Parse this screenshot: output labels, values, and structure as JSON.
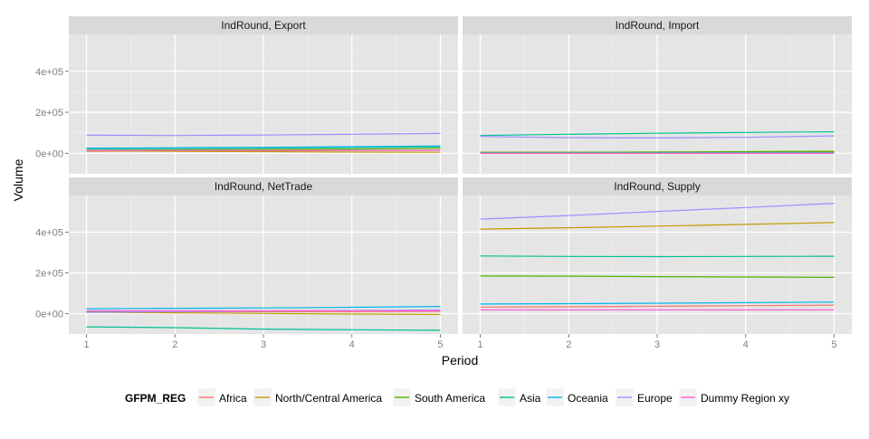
{
  "chart_data": {
    "type": "line",
    "xlabel": "Period",
    "ylabel": "Volume",
    "x": [
      1,
      2,
      3,
      4,
      5
    ],
    "xlim": [
      0.8,
      5.2
    ],
    "ylim": [
      -100000,
      580000
    ],
    "y_ticks": [
      0,
      200000,
      400000
    ],
    "y_tick_labels": [
      "0e+00",
      "2e+05",
      "4e+05"
    ],
    "x_ticks": [
      1,
      2,
      3,
      4,
      5
    ],
    "x_tick_labels": [
      "1",
      "2",
      "3",
      "4",
      "5"
    ],
    "grid": true,
    "facet_layout": "2x2",
    "legend": {
      "title": "GFPM_REG",
      "position": "bottom",
      "entries": [
        {
          "name": "Africa",
          "color": "#F8766D"
        },
        {
          "name": "North/Central America",
          "color": "#C49A00"
        },
        {
          "name": "South America",
          "color": "#53B400"
        },
        {
          "name": "Asia",
          "color": "#00C094"
        },
        {
          "name": "Oceania",
          "color": "#00B6EB"
        },
        {
          "name": "Europe",
          "color": "#A58AFF"
        },
        {
          "name": "Dummy Region xy",
          "color": "#FB61D7"
        }
      ]
    },
    "panels": [
      {
        "title": "IndRound, Export",
        "series": [
          {
            "name": "Africa",
            "values": [
              10000,
              12000,
              13000,
              14000,
              15000
            ]
          },
          {
            "name": "North/Central America",
            "values": [
              12000,
              10000,
              8000,
              6000,
              5000
            ]
          },
          {
            "name": "South America",
            "values": [
              15000,
              17000,
              19000,
              21000,
              24000
            ]
          },
          {
            "name": "Asia",
            "values": [
              22000,
              24000,
              26000,
              29000,
              32000
            ]
          },
          {
            "name": "Oceania",
            "values": [
              25000,
              27000,
              29000,
              32000,
              36000
            ]
          },
          {
            "name": "Europe",
            "values": [
              88000,
              87000,
              89000,
              93000,
              97000
            ]
          },
          {
            "name": "Dummy Region xy",
            "values": [
              14000,
              14000,
              14000,
              14000,
              14000
            ]
          }
        ]
      },
      {
        "title": "IndRound, Import",
        "series": [
          {
            "name": "Africa",
            "values": [
              3000,
              3500,
              4000,
              4500,
              5000
            ]
          },
          {
            "name": "North/Central America",
            "values": [
              5000,
              5000,
              6000,
              7000,
              8000
            ]
          },
          {
            "name": "South America",
            "values": [
              4000,
              5000,
              6000,
              8000,
              10000
            ]
          },
          {
            "name": "Asia",
            "values": [
              87000,
              93000,
              98000,
              102000,
              105000
            ]
          },
          {
            "name": "Oceania",
            "values": [
              1000,
              1000,
              1500,
              2000,
              2000
            ]
          },
          {
            "name": "Europe",
            "values": [
              82000,
              76000,
              75000,
              78000,
              85000
            ]
          },
          {
            "name": "Dummy Region xy",
            "values": [
              0,
              0,
              0,
              0,
              0
            ]
          }
        ]
      },
      {
        "title": "IndRound, NetTrade",
        "series": [
          {
            "name": "Africa",
            "values": [
              8000,
              9000,
              9500,
              10000,
              11000
            ]
          },
          {
            "name": "North/Central America",
            "values": [
              7000,
              4000,
              1000,
              -2000,
              -4000
            ]
          },
          {
            "name": "South America",
            "values": [
              11000,
              12000,
              13000,
              14000,
              15000
            ]
          },
          {
            "name": "Asia",
            "values": [
              -65000,
              -69000,
              -76000,
              -79000,
              -82000
            ]
          },
          {
            "name": "Oceania",
            "values": [
              24000,
              26000,
              28000,
              31000,
              35000
            ]
          },
          {
            "name": "Europe",
            "values": [
              6000,
              10000,
              13000,
              15000,
              18000
            ]
          },
          {
            "name": "Dummy Region xy",
            "values": [
              14000,
              14000,
              14000,
              14000,
              14000
            ]
          }
        ]
      },
      {
        "title": "IndRound, Supply",
        "series": [
          {
            "name": "Africa",
            "values": [
              32000,
              34000,
              36000,
              39000,
              42000
            ]
          },
          {
            "name": "North/Central America",
            "values": [
              415000,
              422000,
              430000,
              438000,
              447000
            ]
          },
          {
            "name": "South America",
            "values": [
              185000,
              184000,
              182000,
              180000,
              178000
            ]
          },
          {
            "name": "Asia",
            "values": [
              283000,
              281000,
              280000,
              281000,
              282000
            ]
          },
          {
            "name": "Oceania",
            "values": [
              47000,
              49000,
              51000,
              54000,
              57000
            ]
          },
          {
            "name": "Europe",
            "values": [
              464000,
              482000,
              502000,
              521000,
              542000
            ]
          },
          {
            "name": "Dummy Region xy",
            "values": [
              18000,
              18000,
              18000,
              18000,
              18000
            ]
          }
        ]
      }
    ]
  }
}
